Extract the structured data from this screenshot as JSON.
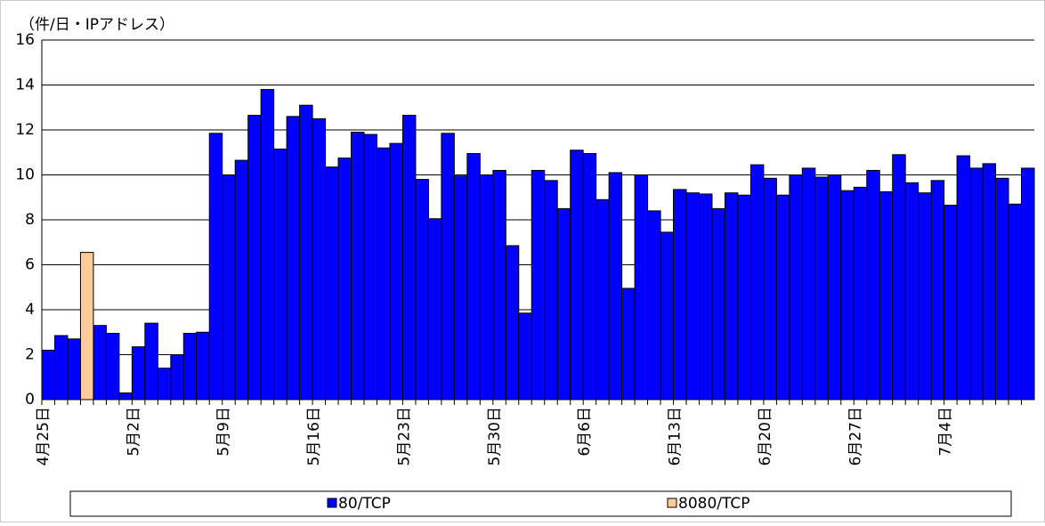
{
  "chart_data": {
    "type": "stacked_bar",
    "y_label": "（件/日・IPアドレス）",
    "categories": [
      "4月25日",
      null,
      null,
      null,
      null,
      null,
      null,
      "5月2日",
      null,
      null,
      null,
      null,
      null,
      null,
      "5月9日",
      null,
      null,
      null,
      null,
      null,
      null,
      "5月16日",
      null,
      null,
      null,
      null,
      null,
      null,
      "5月23日",
      null,
      null,
      null,
      null,
      null,
      null,
      "5月30日",
      null,
      null,
      null,
      null,
      null,
      null,
      "6月6日",
      null,
      null,
      null,
      null,
      null,
      null,
      "6月13日",
      null,
      null,
      null,
      null,
      null,
      null,
      "6月20日",
      null,
      null,
      null,
      null,
      null,
      null,
      "6月27日",
      null,
      null,
      null,
      null,
      null,
      null,
      "7月4日",
      null,
      null,
      null,
      null,
      null,
      null
    ],
    "series": [
      {
        "name": "80/TCP",
        "color": "#0000ff",
        "values": [
          2.2,
          2.85,
          2.7,
          0,
          3.3,
          2.95,
          0.3,
          2.35,
          3.4,
          1.4,
          2.0,
          2.95,
          3.0,
          11.85,
          10.0,
          10.65,
          12.65,
          13.8,
          11.15,
          12.6,
          13.1,
          12.5,
          10.35,
          10.75,
          11.9,
          11.8,
          11.2,
          11.4,
          12.65,
          9.8,
          8.05,
          11.85,
          9.95,
          10.95,
          10.0,
          10.2,
          6.85,
          3.85,
          10.2,
          9.75,
          8.5,
          11.1,
          10.95,
          8.9,
          10.1,
          4.95,
          10.0,
          8.4,
          7.45,
          9.35,
          9.2,
          9.15,
          8.5,
          9.2,
          9.1,
          10.45,
          9.85,
          9.1,
          10.0,
          10.3,
          9.9,
          10.0,
          9.3,
          9.45,
          10.2,
          9.25,
          10.9,
          9.65,
          9.2,
          9.75,
          8.65,
          10.85,
          10.3,
          10.5,
          9.85,
          8.7,
          10.3
        ]
      },
      {
        "name": "8080/TCP",
        "color": "#ffcc99",
        "values": [
          0,
          0,
          0,
          6.55,
          0,
          0,
          0,
          0,
          0,
          0,
          0,
          0,
          0,
          0,
          0,
          0,
          0,
          0,
          0,
          0,
          0,
          0,
          0,
          0,
          0,
          0,
          0,
          0,
          0,
          0,
          0,
          0,
          0,
          0,
          0,
          0,
          0,
          0,
          0,
          0,
          0,
          0,
          0,
          0,
          0,
          0,
          0,
          0,
          0,
          0,
          0,
          0,
          0,
          0,
          0,
          0,
          0,
          0,
          0,
          0,
          0,
          0,
          0,
          0,
          0,
          0,
          0,
          0,
          0,
          0,
          0,
          0,
          0,
          0,
          0,
          0,
          0
        ]
      }
    ],
    "ylim": [
      0,
      16
    ],
    "yticks": [
      0,
      2,
      4,
      6,
      8,
      10,
      12,
      14,
      16
    ],
    "grid": true
  }
}
